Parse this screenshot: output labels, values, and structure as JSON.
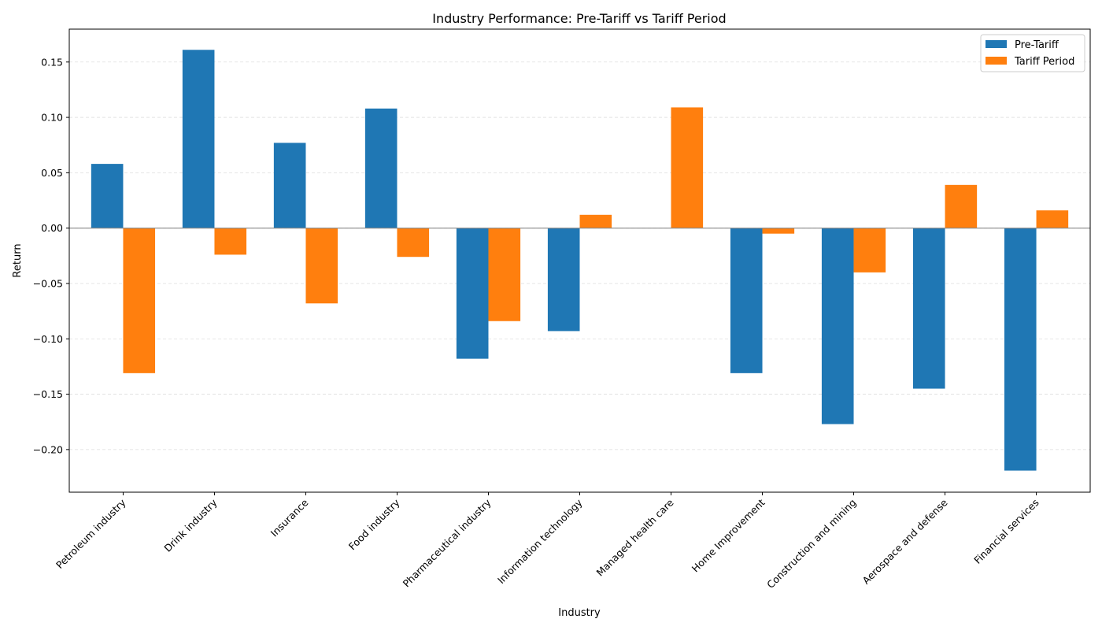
{
  "chart_data": {
    "type": "bar",
    "title": "Industry Performance: Pre-Tariff vs Tariff Period",
    "xlabel": "Industry",
    "ylabel": "Return",
    "categories": [
      "Petroleum industry",
      "Drink industry",
      "Insurance",
      "Food industry",
      "Pharmaceutical industry",
      "Information technology",
      "Managed health care",
      "Home Improvement",
      "Construction and mining",
      "Aerospace and defense",
      "Financial services"
    ],
    "series": [
      {
        "name": "Pre-Tariff",
        "color": "#1f77b4",
        "values": [
          0.058,
          0.161,
          0.077,
          0.108,
          -0.118,
          -0.093,
          0.0,
          -0.131,
          -0.177,
          -0.145,
          -0.219
        ]
      },
      {
        "name": "Tariff Period",
        "color": "#ff7f0e",
        "values": [
          -0.131,
          -0.024,
          -0.068,
          -0.026,
          -0.084,
          0.012,
          0.109,
          -0.005,
          -0.04,
          0.039,
          0.016
        ]
      }
    ],
    "ylim": [
      -0.2385,
      0.1797
    ],
    "yticks": [
      -0.2,
      -0.15,
      -0.1,
      -0.05,
      0.0,
      0.05,
      0.1,
      0.15
    ],
    "grid": "y-dashed",
    "legend_position": "top-right"
  }
}
